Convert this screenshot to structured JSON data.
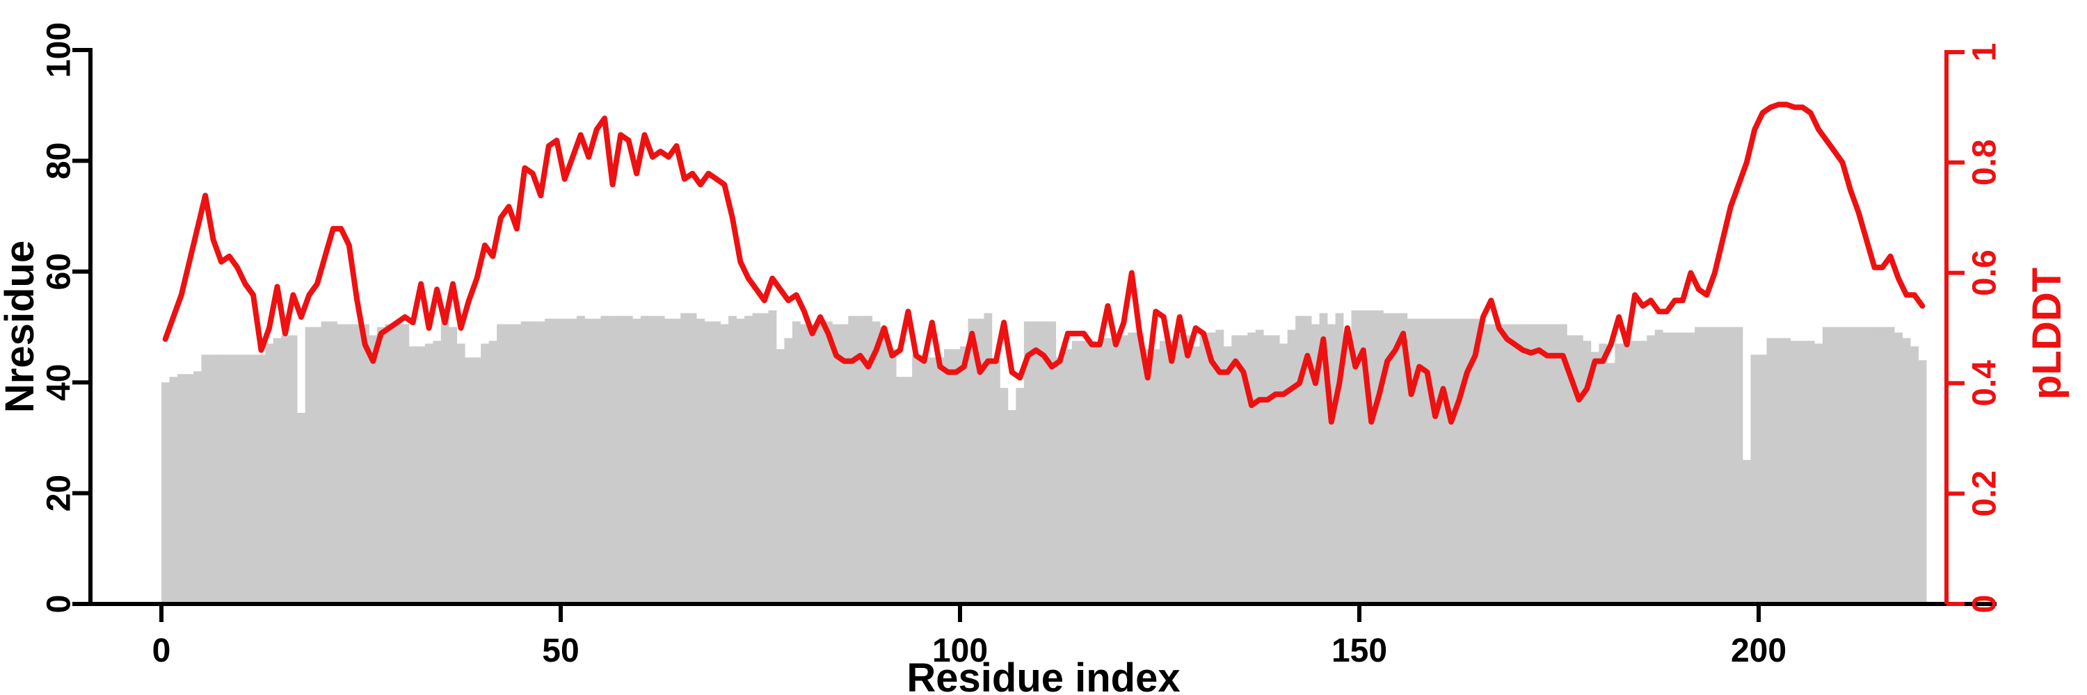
{
  "chart_data": {
    "type": "bar+line",
    "title": "",
    "xlabel": "Residue index",
    "ylabel_left": "Nresidue",
    "ylabel_right": "pLDDT",
    "x_start": 0,
    "x_step": 1,
    "n_points": 221,
    "xlim": [
      -9,
      231
    ],
    "ylim_left": [
      0,
      100
    ],
    "ylim_right": [
      0,
      1
    ],
    "grid": false,
    "legend": "none",
    "colors": {
      "bar_fill": "#cbcbcb",
      "line_stroke": "#ee1111",
      "left_axis": "#000000",
      "right_axis": "#ee1111",
      "background": "#ffffff"
    },
    "x_tick_labels": [
      "0",
      "50",
      "100",
      "150",
      "200"
    ],
    "left_tick_labels": [
      "0",
      "20",
      "40",
      "60",
      "80",
      "100"
    ],
    "right_tick_labels": [
      "0",
      "0.2",
      "0.4",
      "0.6",
      "0.8",
      "1"
    ],
    "series": [
      {
        "name": "Nresidue",
        "type": "bar",
        "axis": "left",
        "values": [
          40,
          41,
          41.5,
          41.5,
          42,
          45,
          45,
          45,
          45,
          45,
          45,
          45,
          45,
          47,
          48,
          48.5,
          48.5,
          34.5,
          50,
          50,
          51,
          51,
          50.5,
          50.5,
          50.5,
          50.5,
          48.5,
          50,
          50.5,
          50.5,
          50.5,
          46.5,
          46.5,
          47,
          47.5,
          53,
          50,
          47,
          44.5,
          44.5,
          47,
          47.5,
          50.5,
          50.5,
          50.5,
          51,
          51,
          51,
          51.5,
          51.5,
          51.5,
          51.5,
          52,
          51.5,
          51.5,
          52,
          52,
          52,
          52,
          51.5,
          52,
          52,
          52,
          51.5,
          51.5,
          52.5,
          52.5,
          51.5,
          51,
          51,
          50.5,
          52,
          51.5,
          52,
          52.5,
          52.5,
          53,
          46,
          48,
          51,
          50.5,
          50.5,
          50.5,
          51,
          50.5,
          50.5,
          52,
          52,
          52,
          51,
          50,
          46,
          41,
          41,
          45,
          45,
          44.5,
          44.5,
          46,
          46,
          46.5,
          51.5,
          51.5,
          52.5,
          44,
          39,
          35,
          39,
          51,
          51,
          51,
          51,
          44.5,
          46,
          47.5,
          47.5,
          47.5,
          46.5,
          48,
          48,
          48.5,
          49,
          49,
          46,
          46,
          47.5,
          47.5,
          48.5,
          48.5,
          46.5,
          49,
          49,
          49.5,
          46.5,
          48.5,
          48.5,
          49,
          49.5,
          48.5,
          48.5,
          47,
          49.5,
          52,
          52,
          50.5,
          52.5,
          50.5,
          52.5,
          49,
          53,
          53,
          53,
          53,
          52.5,
          52.5,
          52.5,
          51.5,
          51.5,
          51.5,
          51.5,
          51.5,
          51.5,
          51.5,
          51.5,
          51.5,
          50.5,
          50.5,
          50.5,
          50.5,
          50.5,
          50.5,
          50.5,
          50.5,
          50.5,
          50.5,
          50.5,
          48.5,
          48.5,
          47.5,
          45.5,
          47,
          43.5,
          47,
          47.5,
          47.5,
          47.5,
          48.5,
          49.5,
          49,
          49,
          49,
          49,
          50,
          50,
          50,
          50,
          50,
          50,
          26,
          45,
          45,
          48,
          48,
          48,
          47.5,
          47.5,
          47.5,
          47,
          50,
          50,
          50,
          50,
          50,
          50,
          50,
          50,
          50,
          49,
          48,
          46.5,
          44
        ]
      },
      {
        "name": "pLDDT",
        "type": "line",
        "axis": "right",
        "values": [
          0.48,
          0.52,
          0.56,
          0.62,
          0.68,
          0.74,
          0.66,
          0.62,
          0.63,
          0.61,
          0.58,
          0.56,
          0.46,
          0.5,
          0.575,
          0.49,
          0.56,
          0.52,
          0.56,
          0.58,
          0.63,
          0.68,
          0.68,
          0.65,
          0.55,
          0.47,
          0.44,
          0.49,
          0.5,
          0.51,
          0.52,
          0.51,
          0.58,
          0.5,
          0.57,
          0.51,
          0.58,
          0.5,
          0.55,
          0.59,
          0.65,
          0.63,
          0.7,
          0.72,
          0.68,
          0.79,
          0.78,
          0.74,
          0.83,
          0.84,
          0.77,
          0.81,
          0.85,
          0.81,
          0.86,
          0.88,
          0.76,
          0.85,
          0.84,
          0.78,
          0.85,
          0.81,
          0.82,
          0.81,
          0.83,
          0.77,
          0.78,
          0.76,
          0.78,
          0.77,
          0.76,
          0.7,
          0.62,
          0.59,
          0.57,
          0.55,
          0.59,
          0.57,
          0.55,
          0.56,
          0.53,
          0.49,
          0.52,
          0.49,
          0.45,
          0.44,
          0.44,
          0.45,
          0.43,
          0.46,
          0.5,
          0.45,
          0.46,
          0.53,
          0.45,
          0.44,
          0.51,
          0.43,
          0.42,
          0.42,
          0.43,
          0.49,
          0.42,
          0.44,
          0.44,
          0.51,
          0.42,
          0.41,
          0.45,
          0.46,
          0.45,
          0.43,
          0.44,
          0.49,
          0.49,
          0.49,
          0.47,
          0.47,
          0.54,
          0.47,
          0.51,
          0.6,
          0.49,
          0.41,
          0.53,
          0.52,
          0.44,
          0.52,
          0.45,
          0.5,
          0.49,
          0.44,
          0.42,
          0.42,
          0.44,
          0.42,
          0.36,
          0.37,
          0.37,
          0.38,
          0.38,
          0.39,
          0.4,
          0.45,
          0.4,
          0.48,
          0.33,
          0.4,
          0.5,
          0.43,
          0.46,
          0.33,
          0.38,
          0.44,
          0.46,
          0.49,
          0.38,
          0.43,
          0.42,
          0.34,
          0.39,
          0.33,
          0.37,
          0.42,
          0.45,
          0.52,
          0.55,
          0.5,
          0.48,
          0.47,
          0.46,
          0.455,
          0.46,
          0.45,
          0.45,
          0.45,
          0.41,
          0.37,
          0.39,
          0.44,
          0.44,
          0.47,
          0.52,
          0.47,
          0.56,
          0.54,
          0.55,
          0.53,
          0.53,
          0.55,
          0.55,
          0.6,
          0.57,
          0.56,
          0.6,
          0.66,
          0.72,
          0.76,
          0.8,
          0.86,
          0.89,
          0.9,
          0.905,
          0.905,
          0.9,
          0.9,
          0.89,
          0.86,
          0.84,
          0.82,
          0.8,
          0.75,
          0.71,
          0.66,
          0.61,
          0.61,
          0.63,
          0.59,
          0.56,
          0.56,
          0.54
        ]
      }
    ]
  }
}
